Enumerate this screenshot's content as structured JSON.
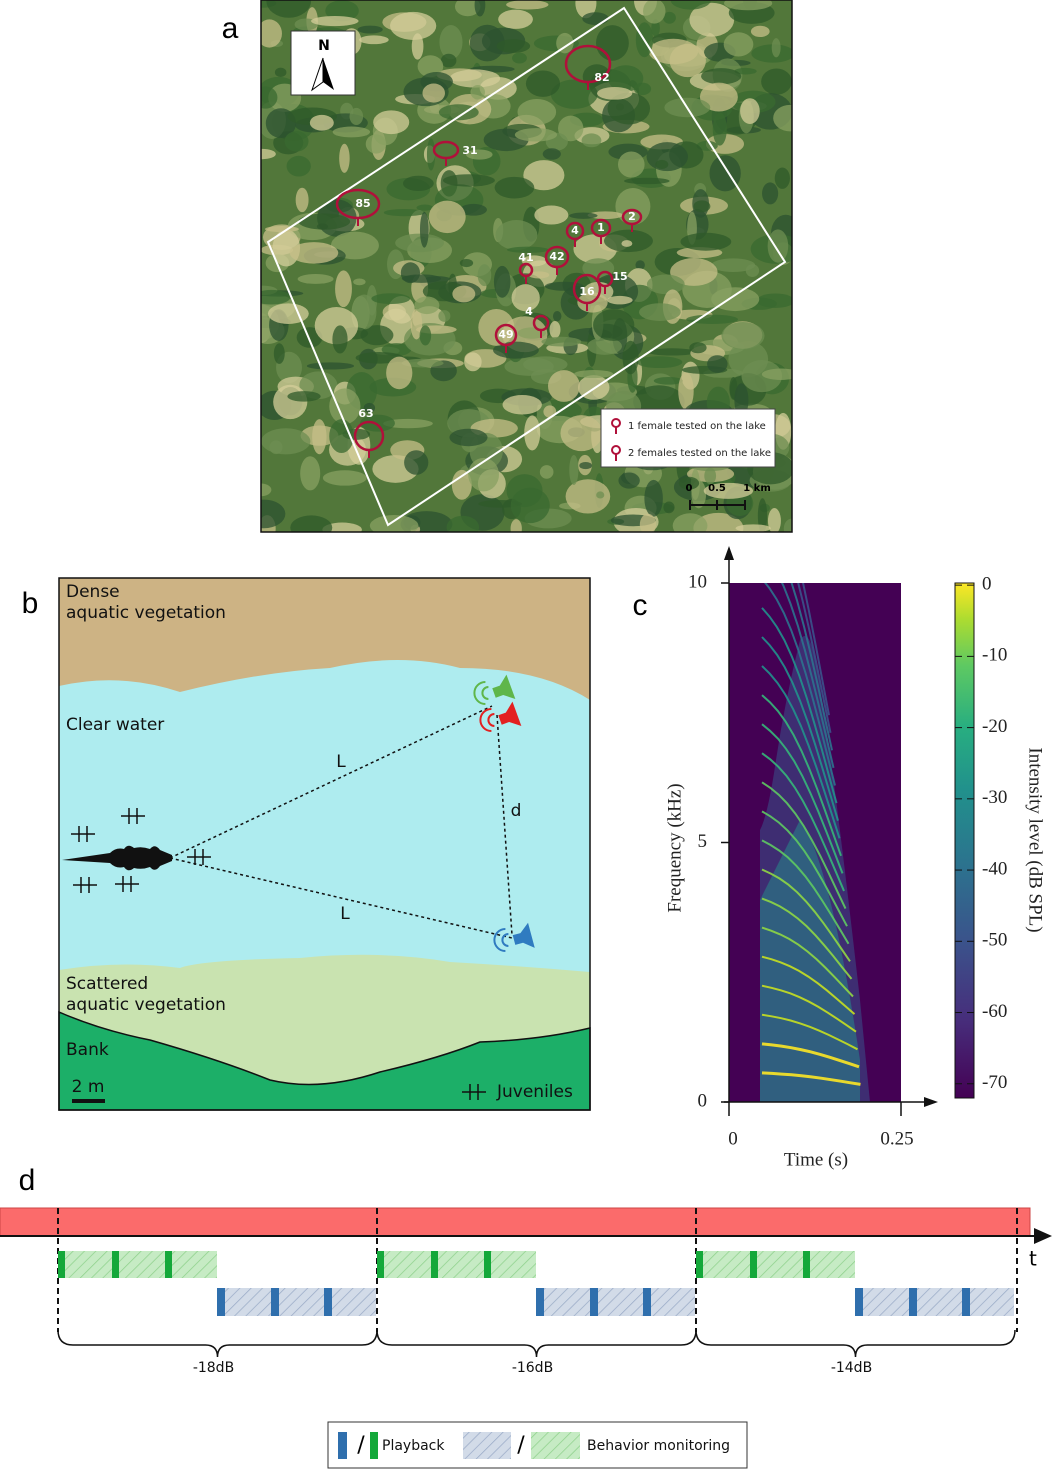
{
  "panel_labels": [
    "a",
    "b",
    "c",
    "d"
  ],
  "map": {
    "north": "N",
    "lakes": [
      "82",
      "31",
      "85",
      "4",
      "1",
      "2",
      "41",
      "42",
      "15",
      "16",
      "4",
      "49",
      "63"
    ],
    "legend": [
      "1 female tested on the lake",
      "2 females tested on the lake"
    ],
    "scale": [
      "0",
      "0.5",
      "1 km"
    ]
  },
  "schematic": {
    "zones": [
      [
        "Dense",
        "aquatic vegetation"
      ],
      [
        "Clear water"
      ],
      [
        "Scattered",
        "aquatic vegetation"
      ],
      [
        "Bank"
      ]
    ],
    "scale": "2 m",
    "juveniles": "Juveniles",
    "distances": [
      "L",
      "L",
      "d"
    ]
  },
  "chart_data": {
    "type": "spectrogram",
    "x_label": "Time (s)",
    "y_label": "Frequency (kHz)",
    "xlim": [
      0,
      0.25
    ],
    "xticks": [
      0,
      0.25
    ],
    "ylim": [
      0,
      10
    ],
    "yticks": [
      0,
      5,
      10
    ],
    "colorbar": {
      "label": "Intensity level (dB SPL)",
      "lim": [
        -72,
        0.3
      ],
      "ticks": [
        0,
        -10,
        -20,
        -30,
        -40,
        -50,
        -60,
        -70
      ]
    }
  },
  "timeline": {
    "axis": "t",
    "blocks": [
      "-18dB",
      "-16dB",
      "-14dB"
    ],
    "legend": {
      "separator": "/",
      "playback": "Playback",
      "monitoring": "Behavior monitoring"
    }
  }
}
